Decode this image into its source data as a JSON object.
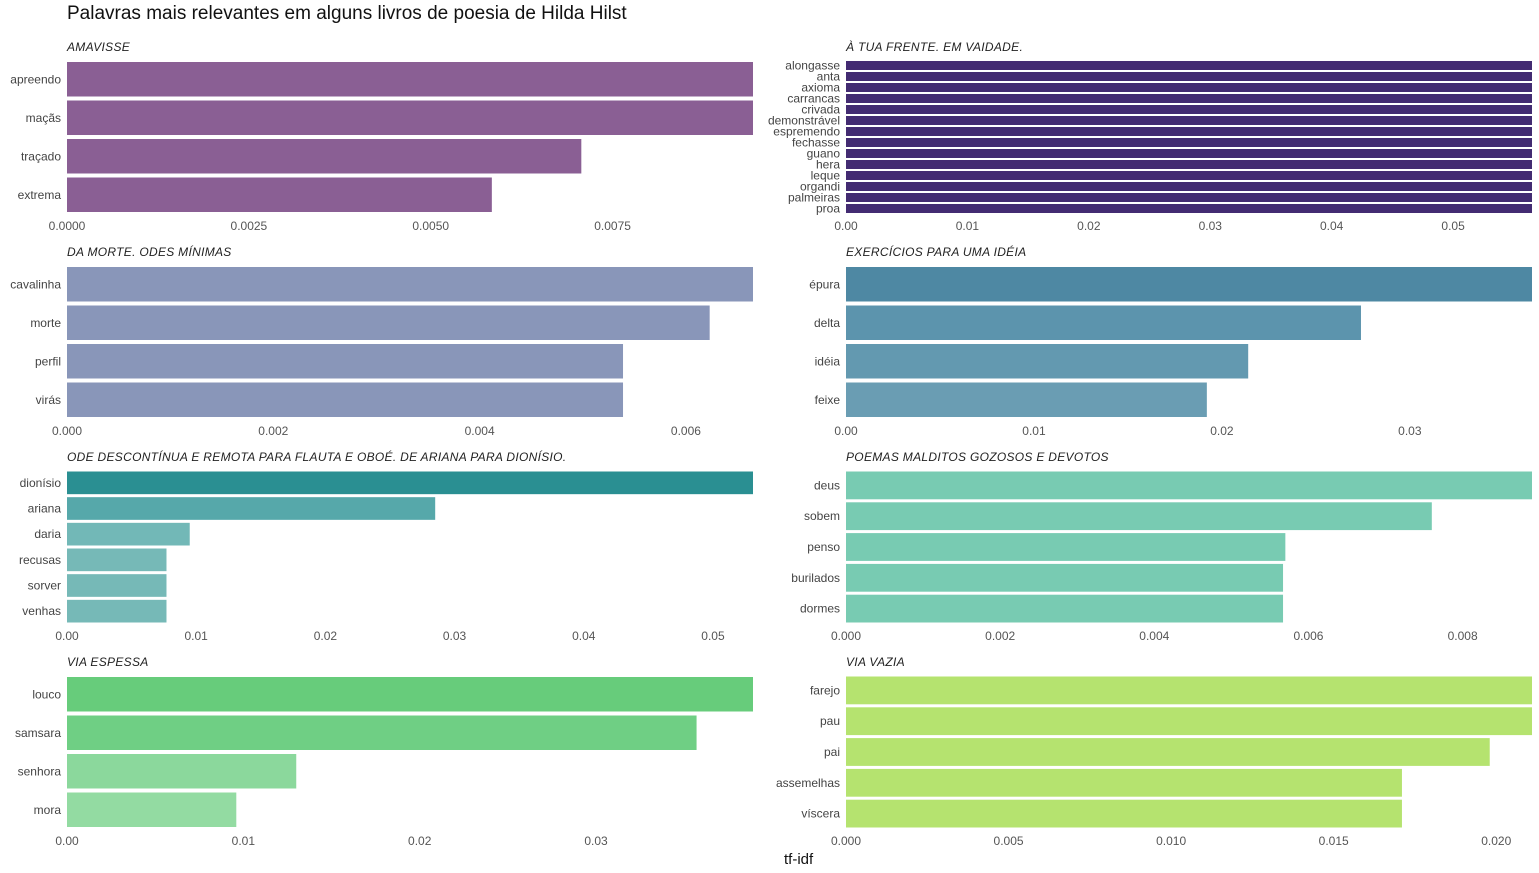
{
  "title": "Palavras mais relevantes em alguns livros de poesia de Hilda Hilst",
  "x_axis_label": "tf-idf",
  "chart_data": [
    {
      "type": "bar",
      "orientation": "horizontal",
      "title": "AMAVISSE",
      "categories": [
        "apreendo",
        "maçãs",
        "traçado",
        "extrema"
      ],
      "values": [
        0.00943,
        0.00943,
        0.00707,
        0.00584
      ],
      "xlim": [
        0,
        0.00943
      ],
      "ticks": [
        0,
        0.0025,
        0.005,
        0.0075
      ],
      "tick_labels": [
        "0.0000",
        "0.0025",
        "0.0050",
        "0.0075"
      ],
      "colors": [
        "#8a5f94",
        "#8a5f94",
        "#8a5f94",
        "#8a5f94"
      ]
    },
    {
      "type": "bar",
      "orientation": "horizontal",
      "title": "À TUA FRENTE. EM VAIDADE.",
      "categories": [
        "alongasse",
        "anta",
        "axioma",
        "carrancas",
        "crivada",
        "demonstrável",
        "espremendo",
        "fechasse",
        "guano",
        "hera",
        "leque",
        "organdi",
        "palmeiras",
        "proa"
      ],
      "values": [
        0.0565,
        0.0565,
        0.0565,
        0.0565,
        0.0565,
        0.0565,
        0.0565,
        0.0565,
        0.0565,
        0.0565,
        0.0565,
        0.0565,
        0.0565,
        0.0565
      ],
      "xlim": [
        0,
        0.0565
      ],
      "ticks": [
        0,
        0.01,
        0.02,
        0.03,
        0.04,
        0.05
      ],
      "tick_labels": [
        "0.00",
        "0.01",
        "0.02",
        "0.03",
        "0.04",
        "0.05"
      ],
      "colors": [
        "#432b72",
        "#432b72",
        "#432b72",
        "#432b72",
        "#432b72",
        "#432b72",
        "#432b72",
        "#432b72",
        "#432b72",
        "#432b72",
        "#432b72",
        "#432b72",
        "#432b72",
        "#432b72"
      ]
    },
    {
      "type": "bar",
      "orientation": "horizontal",
      "title": "DA MORTE. ODES MÍNIMAS",
      "categories": [
        "cavalinha",
        "morte",
        "perfil",
        "virás"
      ],
      "values": [
        0.00665,
        0.00623,
        0.00539,
        0.00539
      ],
      "xlim": [
        0,
        0.00665
      ],
      "ticks": [
        0,
        0.002,
        0.004,
        0.006
      ],
      "tick_labels": [
        "0.000",
        "0.002",
        "0.004",
        "0.006"
      ],
      "colors": [
        "#8996b9",
        "#8996b9",
        "#8996b9",
        "#8996b9"
      ]
    },
    {
      "type": "bar",
      "orientation": "horizontal",
      "title": "EXERCÍCIOS PARA UMA IDÉIA",
      "categories": [
        "épura",
        "delta",
        "idéia",
        "feixe"
      ],
      "values": [
        0.0365,
        0.0274,
        0.0214,
        0.0192
      ],
      "xlim": [
        0,
        0.0365
      ],
      "ticks": [
        0,
        0.01,
        0.02,
        0.03
      ],
      "tick_labels": [
        "0.00",
        "0.01",
        "0.02",
        "0.03"
      ],
      "colors": [
        "#4e88a3",
        "#5c94ad",
        "#6399b0",
        "#6a9db3"
      ]
    },
    {
      "type": "bar",
      "orientation": "horizontal",
      "title": "ODE DESCONTÍNUA E REMOTA PARA FLAUTA E OBOÉ. DE ARIANA PARA DIONÍSIO.",
      "categories": [
        "dionísio",
        "ariana",
        "daria",
        "recusas",
        "sorver",
        "venhas"
      ],
      "values": [
        0.0531,
        0.0285,
        0.0095,
        0.0077,
        0.0077,
        0.0077
      ],
      "xlim": [
        0,
        0.0531
      ],
      "ticks": [
        0,
        0.01,
        0.02,
        0.03,
        0.04,
        0.05
      ],
      "tick_labels": [
        "0.00",
        "0.01",
        "0.02",
        "0.03",
        "0.04",
        "0.05"
      ],
      "colors": [
        "#2a8f92",
        "#56a8aa",
        "#72b8b7",
        "#76b9b7",
        "#76b9b7",
        "#76b9b7"
      ]
    },
    {
      "type": "bar",
      "orientation": "horizontal",
      "title": "POEMAS MALDITOS GOZOSOS E DEVOTOS",
      "categories": [
        "deus",
        "sobem",
        "penso",
        "burilados",
        "dormes"
      ],
      "values": [
        0.0089,
        0.0076,
        0.0057,
        0.00567,
        0.00567
      ],
      "xlim": [
        0,
        0.0089
      ],
      "ticks": [
        0,
        0.002,
        0.004,
        0.006,
        0.008
      ],
      "tick_labels": [
        "0.000",
        "0.002",
        "0.004",
        "0.006",
        "0.008"
      ],
      "colors": [
        "#78cbb2",
        "#78cbb2",
        "#78cbb2",
        "#78cbb2",
        "#78cbb2"
      ]
    },
    {
      "type": "bar",
      "orientation": "horizontal",
      "title": "VIA ESPESSA",
      "categories": [
        "louco",
        "samsara",
        "senhora",
        "mora"
      ],
      "values": [
        0.0389,
        0.0357,
        0.013,
        0.0096
      ],
      "xlim": [
        0,
        0.0389
      ],
      "ticks": [
        0,
        0.01,
        0.02,
        0.03
      ],
      "tick_labels": [
        "0.00",
        "0.01",
        "0.02",
        "0.03"
      ],
      "colors": [
        "#67cc7b",
        "#6fcf84",
        "#8bd89c",
        "#93dba2"
      ]
    },
    {
      "type": "bar",
      "orientation": "horizontal",
      "title": "VIA VAZIA",
      "categories": [
        "farejo",
        "pau",
        "pai",
        "assemelhas",
        "víscera"
      ],
      "values": [
        0.0211,
        0.0211,
        0.0198,
        0.0171,
        0.0171
      ],
      "xlim": [
        0,
        0.0211
      ],
      "ticks": [
        0,
        0.005,
        0.01,
        0.015,
        0.02
      ],
      "tick_labels": [
        "0.000",
        "0.005",
        "0.010",
        "0.015",
        "0.020"
      ],
      "colors": [
        "#b5e36f",
        "#b5e36f",
        "#b5e36f",
        "#b5e36f",
        "#b5e36f"
      ]
    }
  ]
}
